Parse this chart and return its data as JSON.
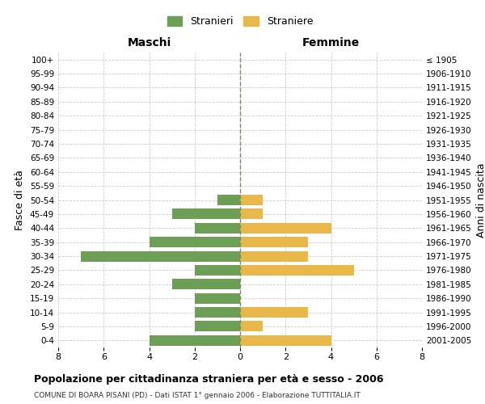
{
  "age_groups": [
    "100+",
    "95-99",
    "90-94",
    "85-89",
    "80-84",
    "75-79",
    "70-74",
    "65-69",
    "60-64",
    "55-59",
    "50-54",
    "45-49",
    "40-44",
    "35-39",
    "30-34",
    "25-29",
    "20-24",
    "15-19",
    "10-14",
    "5-9",
    "0-4"
  ],
  "birth_years": [
    "≤ 1905",
    "1906-1910",
    "1911-1915",
    "1916-1920",
    "1921-1925",
    "1926-1930",
    "1931-1935",
    "1936-1940",
    "1941-1945",
    "1946-1950",
    "1951-1955",
    "1956-1960",
    "1961-1965",
    "1966-1970",
    "1971-1975",
    "1976-1980",
    "1981-1985",
    "1986-1990",
    "1991-1995",
    "1996-2000",
    "2001-2005"
  ],
  "males": [
    0,
    0,
    0,
    0,
    0,
    0,
    0,
    0,
    0,
    0,
    1,
    3,
    2,
    4,
    7,
    2,
    3,
    2,
    2,
    2,
    4
  ],
  "females": [
    0,
    0,
    0,
    0,
    0,
    0,
    0,
    0,
    0,
    0,
    1,
    1,
    4,
    3,
    3,
    5,
    0,
    0,
    3,
    1,
    4
  ],
  "male_color": "#6d9e56",
  "female_color": "#e8b84b",
  "background_color": "#ffffff",
  "grid_color": "#cccccc",
  "xlim": 8,
  "title": "Popolazione per cittadinanza straniera per età e sesso - 2006",
  "subtitle": "COMUNE DI BOARA PISANI (PD) - Dati ISTAT 1° gennaio 2006 - Elaborazione TUTTITALIA.IT",
  "ylabel_left": "Fasce di età",
  "ylabel_right": "Anni di nascita",
  "legend_male": "Stranieri",
  "legend_female": "Straniere"
}
